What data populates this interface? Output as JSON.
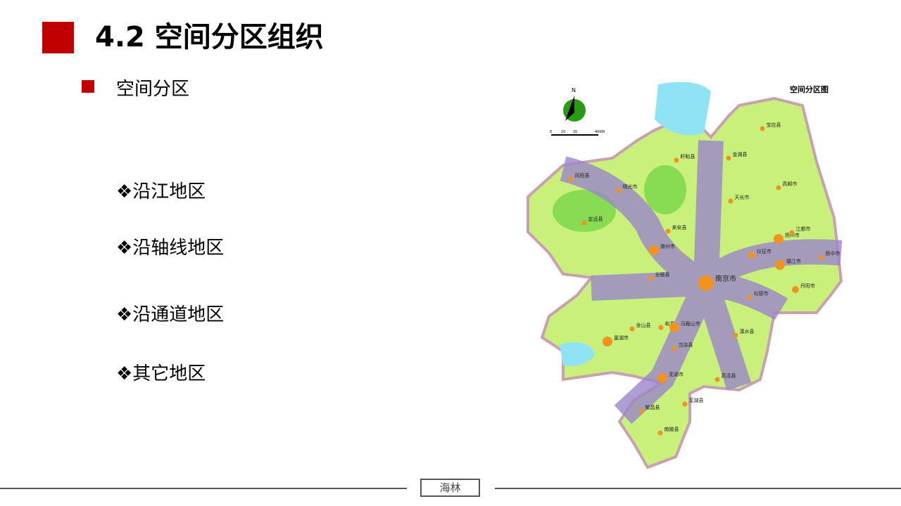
{
  "header": {
    "title": "4.2  空间分区组织",
    "accent": "#c00000"
  },
  "section": {
    "subtitle": "空间分区"
  },
  "items": [
    {
      "label": "❖沿江地区"
    },
    {
      "label": "❖沿轴线地区"
    },
    {
      "label": "❖沿通道地区"
    },
    {
      "label": "❖其它地区"
    }
  ],
  "map": {
    "title": "空间分区图",
    "north": "N",
    "scale": [
      "0",
      "10",
      "20",
      "40KM"
    ],
    "colors": {
      "land": "#c8f07a",
      "corridor": "#9a86c9",
      "city": "#f29320",
      "water": "#8fe3f2",
      "hills": "#5ccf3a"
    },
    "cities": [
      {
        "name": "宝应县",
        "size": "s"
      },
      {
        "name": "盱眙县",
        "size": "s"
      },
      {
        "name": "金湖县",
        "size": "s"
      },
      {
        "name": "凤阳县",
        "size": "s"
      },
      {
        "name": "明光市",
        "size": "s"
      },
      {
        "name": "高邮市",
        "size": "s"
      },
      {
        "name": "天长市",
        "size": "s"
      },
      {
        "name": "定远县",
        "size": "s"
      },
      {
        "name": "来安县",
        "size": "s"
      },
      {
        "name": "扬州市",
        "size": "l"
      },
      {
        "name": "江都市",
        "size": "s"
      },
      {
        "name": "滁州市",
        "size": "l"
      },
      {
        "name": "仪征市",
        "size": "m"
      },
      {
        "name": "扬中市",
        "size": "s"
      },
      {
        "name": "镇江市",
        "size": "l"
      },
      {
        "name": "全椒县",
        "size": "s"
      },
      {
        "name": "南京市",
        "size": "xl"
      },
      {
        "name": "丹阳市",
        "size": "m"
      },
      {
        "name": "句容市",
        "size": "s"
      },
      {
        "name": "含山县",
        "size": "s"
      },
      {
        "name": "和县",
        "size": "s"
      },
      {
        "name": "马鞍山市",
        "size": "l"
      },
      {
        "name": "溧水县",
        "size": "s"
      },
      {
        "name": "巢湖市",
        "size": "l"
      },
      {
        "name": "当涂县",
        "size": "s"
      },
      {
        "name": "高淳县",
        "size": "s"
      },
      {
        "name": "芜湖市",
        "size": "l"
      },
      {
        "name": "芜湖县",
        "size": "s"
      },
      {
        "name": "繁昌县",
        "size": "s"
      },
      {
        "name": "南陵县",
        "size": "s"
      }
    ]
  },
  "footer": {
    "label": "海林"
  }
}
